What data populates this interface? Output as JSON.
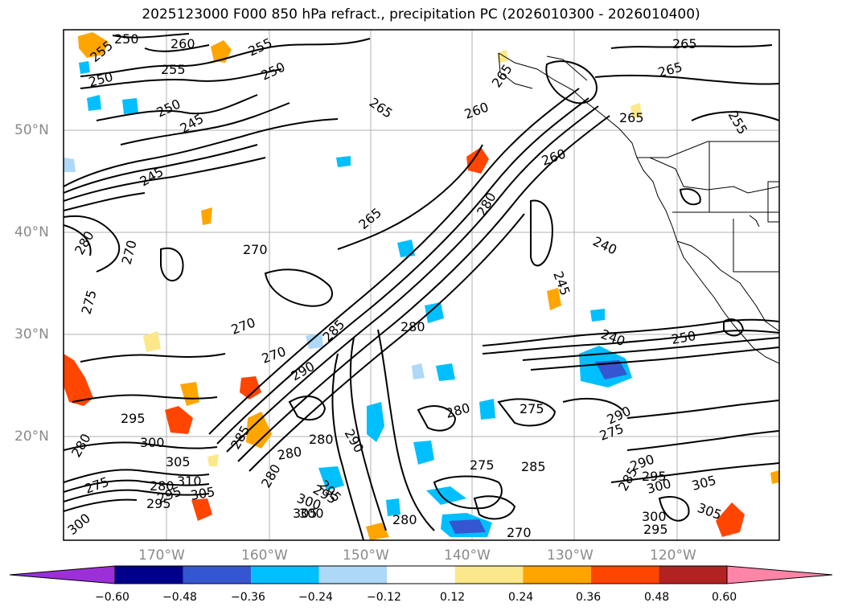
{
  "title": "2025123000 F000 850 hPa refract., precipitation PC (2026010300 - 2026010400)",
  "lat_labels": [
    "50°N",
    "40°N",
    "30°N",
    "20°N"
  ],
  "lon_labels": [
    "170°W",
    "160°W",
    "150°W",
    "140°W",
    "130°W",
    "120°W"
  ],
  "colorbar": {
    "ticks": [
      "−0.60",
      "−0.48",
      "−0.36",
      "−0.24",
      "−0.12",
      "0.12",
      "0.24",
      "0.36",
      "0.48",
      "0.60"
    ],
    "colors": [
      "#9b30d9",
      "#00008b",
      "#3457d1",
      "#00bfff",
      "#add8f7",
      "#ffffff",
      "#fbe88a",
      "#ffa500",
      "#ff4500",
      "#b22222",
      "#ff85a7"
    ]
  },
  "contour_labels": [
    "250",
    "260",
    "255",
    "250",
    "255",
    "250",
    "255",
    "250",
    "245",
    "245",
    "265",
    "260",
    "265",
    "265",
    "265",
    "255",
    "260",
    "280",
    "240",
    "245",
    "240",
    "250",
    "265",
    "270",
    "270",
    "265",
    "285",
    "270",
    "290",
    "280",
    "280",
    "275",
    "290",
    "280",
    "275",
    "285",
    "290",
    "275",
    "295",
    "300",
    "280",
    "285",
    "295",
    "300",
    "280",
    "285",
    "290",
    "295",
    "300",
    "305",
    "305",
    "305",
    "295",
    "280",
    "275",
    "300",
    "280",
    "270",
    "300",
    "295",
    "280",
    "270",
    "275",
    "280",
    "295",
    "300",
    "305",
    "310",
    "305",
    "295"
  ]
}
